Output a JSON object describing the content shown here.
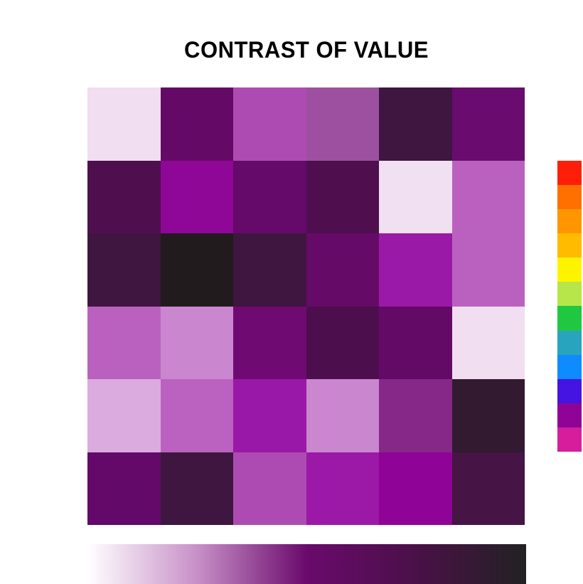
{
  "title": "CONTRAST OF VALUE",
  "grid": {
    "rows": [
      [
        "#f1def0",
        "#650966",
        "#ae4bb3",
        "#9d509f",
        "#3e1640",
        "#6a0b70"
      ],
      [
        "#4f0f4f",
        "#8f0797",
        "#65096a",
        "#4f0f4f",
        "#f1dff2",
        "#ba61c0"
      ],
      [
        "#3f1640",
        "#221b1e",
        "#3e1640",
        "#660a68",
        "#9a19a7",
        "#ba61c0"
      ],
      [
        "#ba61c0",
        "#ca87cf",
        "#6f0a73",
        "#4d0e4e",
        "#630a67",
        "#f1def0"
      ],
      [
        "#dbaadf",
        "#bb61c0",
        "#9a18a7",
        "#ca86cf",
        "#852887",
        "#321a31"
      ],
      [
        "#63096a",
        "#3f1640",
        "#ae4bb3",
        "#9b19a6",
        "#8f0497",
        "#461445"
      ]
    ]
  },
  "palette": [
    "#ff1e08",
    "#ff7000",
    "#ff9600",
    "#ffbb00",
    "#fff400",
    "#b7e64a",
    "#20c842",
    "#28a4bf",
    "#0e8cff",
    "#4514e3",
    "#8f0497",
    "#d61e9d"
  ],
  "value_scale": {
    "stops": [
      "#ffffff",
      "#c890c8",
      "#6a0a6c",
      "#4a1048",
      "#222222"
    ]
  }
}
